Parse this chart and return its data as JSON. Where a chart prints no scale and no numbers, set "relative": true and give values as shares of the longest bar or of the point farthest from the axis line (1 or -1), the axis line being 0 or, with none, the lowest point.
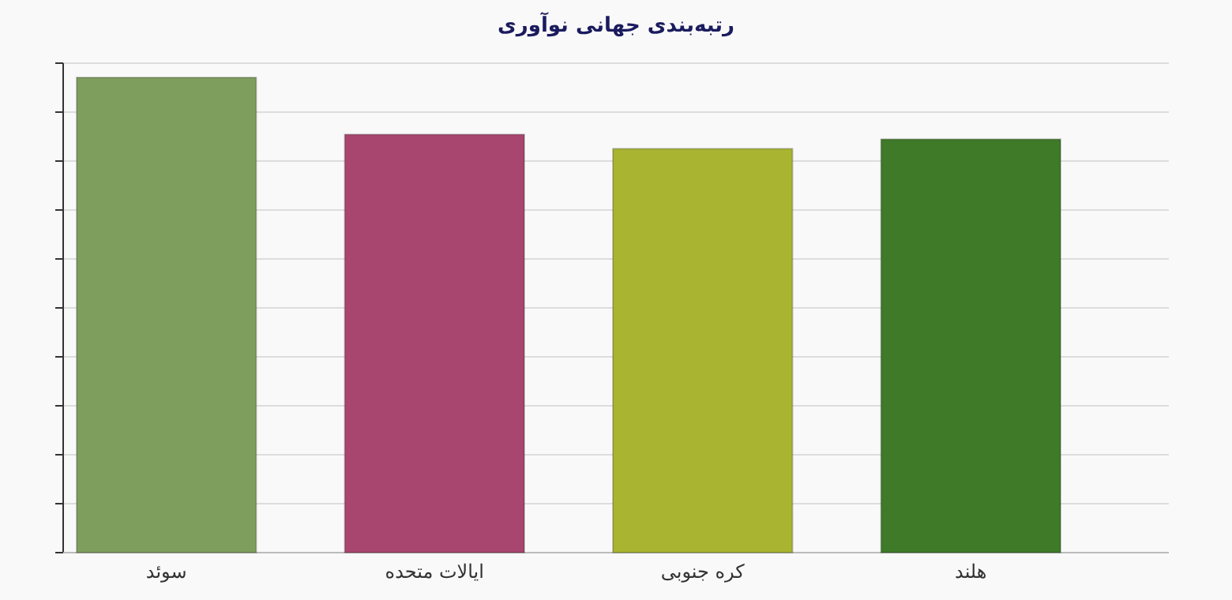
{
  "chart_data": {
    "type": "bar",
    "title": "رتبه‌بندی جهانی نوآوری",
    "relative": true,
    "grid": "y",
    "categories": [
      "سوئد",
      "ایالات متحده",
      "کره جنوبی",
      "هلند"
    ],
    "values": [
      1,
      0.88,
      0.85,
      0.87
    ],
    "colors": [
      "#7e9e5e",
      "#a8466f",
      "#a9b431",
      "#3e7a28"
    ]
  }
}
